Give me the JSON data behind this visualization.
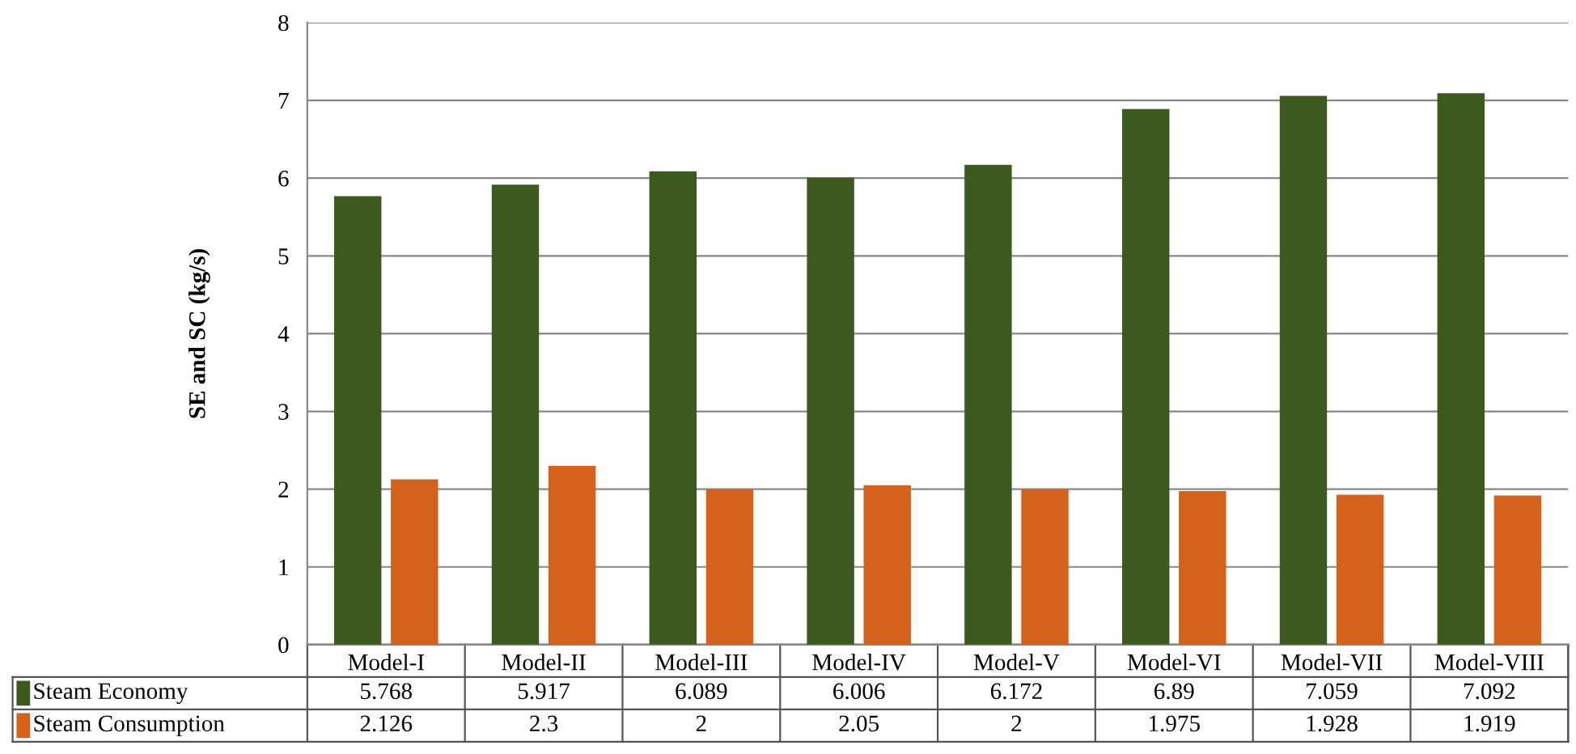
{
  "chart_data": {
    "type": "bar",
    "ylabel": "SE and SC (kg/s)",
    "categories": [
      "Model-I",
      "Model-II",
      "Model-III",
      "Model-IV",
      "Model-V",
      "Model-VI",
      "Model-VII",
      "Model-VIII"
    ],
    "series": [
      {
        "name": "Steam Economy",
        "color": "#3d5a1e",
        "values": [
          5.768,
          5.917,
          6.089,
          6.006,
          6.172,
          6.89,
          7.059,
          7.092
        ]
      },
      {
        "name": "Steam Consumption",
        "color": "#d4621a",
        "values": [
          2.126,
          2.3,
          2,
          2.05,
          2,
          1.975,
          1.928,
          1.919
        ]
      }
    ],
    "ylim": [
      0,
      8
    ],
    "yticks": [
      0,
      1,
      2,
      3,
      4,
      5,
      6,
      7,
      8
    ],
    "grid": "y",
    "legend": "bottom",
    "data_labels": true
  }
}
